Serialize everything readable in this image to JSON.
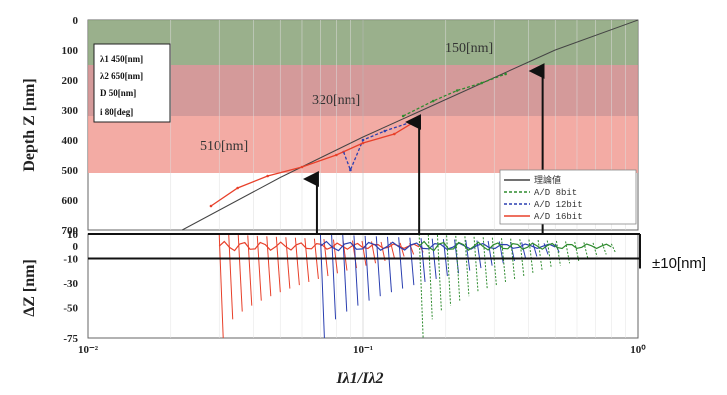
{
  "chart_data": [
    {
      "type": "line",
      "xscale": "log",
      "xlim": [
        0.01,
        1
      ],
      "ylim": [
        0,
        700
      ],
      "y_inverted": true,
      "ylabel": "Depth Z [nm]",
      "yticks": [
        "0",
        "100",
        "200",
        "300",
        "400",
        "500",
        "600",
        "700"
      ],
      "bands": [
        {
          "label": "150[nm]",
          "from": 0,
          "to": 150,
          "color": "#8fa780"
        },
        {
          "label": "320[nm]",
          "from": 150,
          "to": 320,
          "color": "#cf8f8f"
        },
        {
          "label": "510[nm]",
          "from": 320,
          "to": 510,
          "color": "#f2a29a"
        }
      ],
      "parameters": [
        {
          "symbol": "λ1",
          "value": "450[nm]"
        },
        {
          "symbol": "λ2",
          "value": "650[nm]"
        },
        {
          "symbol": "D",
          "value": "50[nm]"
        },
        {
          "symbol": "i",
          "value": "80[deg]"
        }
      ],
      "series": [
        {
          "name": "理論値",
          "color": "#444444",
          "style": "solid",
          "x": [
            0.022,
            0.05,
            0.1,
            0.2,
            0.5,
            1.0
          ],
          "y": [
            700,
            525,
            390,
            265,
            100,
            0
          ]
        },
        {
          "name": "A/D 8bit",
          "color": "#2e8b2e",
          "style": "dashed",
          "x": [
            0.14,
            0.18,
            0.22,
            0.27,
            0.33
          ],
          "y": [
            320,
            270,
            235,
            210,
            180
          ]
        },
        {
          "name": "A/D 12bit",
          "color": "#2a3fb0",
          "style": "dashed",
          "x": [
            0.085,
            0.09,
            0.1,
            0.12,
            0.15
          ],
          "y": [
            440,
            500,
            400,
            370,
            340
          ]
        },
        {
          "name": "A/D 16bit",
          "color": "#e8402a",
          "style": "solid",
          "x": [
            0.028,
            0.035,
            0.045,
            0.06,
            0.08,
            0.1,
            0.13,
            0.16
          ],
          "y": [
            620,
            560,
            520,
            490,
            450,
            410,
            380,
            330
          ]
        }
      ],
      "arrows": [
        {
          "x": 0.068,
          "y_from": 700,
          "y_to": 510
        },
        {
          "x": 0.16,
          "y_from": 700,
          "y_to": 320
        },
        {
          "x": 0.45,
          "y_from": 700,
          "y_to": 150
        }
      ]
    },
    {
      "type": "line",
      "xscale": "log",
      "xlim": [
        0.01,
        1
      ],
      "ylim": [
        -75,
        10
      ],
      "ylabel": "ΔZ [nm]",
      "xlabel": "Iλ1/Iλ2",
      "yticks": [
        "10",
        "0",
        "-10",
        "-30",
        "-50",
        "-75"
      ],
      "xticks": [
        "10⁻²",
        "10⁻¹",
        "10⁰"
      ],
      "tolerance_lines": [
        10,
        -10
      ],
      "annotation": "±10[nm]",
      "series": [
        {
          "name": "A/D 16bit",
          "color": "#e8402a",
          "x_range": [
            0.03,
            0.16
          ]
        },
        {
          "name": "A/D 12bit",
          "color": "#2a3fb0",
          "x_range": [
            0.07,
            0.5
          ]
        },
        {
          "name": "A/D 8bit",
          "color": "#2e8b2e",
          "x_range": [
            0.16,
            0.8
          ]
        }
      ]
    }
  ]
}
